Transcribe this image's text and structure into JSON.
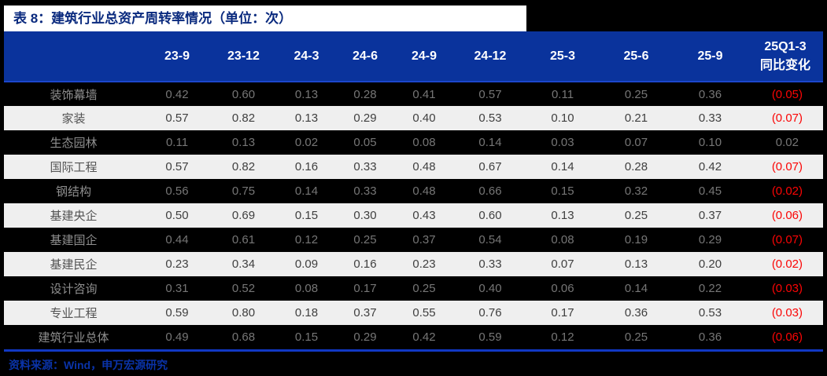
{
  "title": {
    "text": "表 8：建筑行业总资产周转率情况（单位：次）"
  },
  "chart_data": {
    "type": "table",
    "title": "表 8：建筑行业总资产周转率情况（单位：次）",
    "unit": "次",
    "columns": [
      "23-9",
      "23-12",
      "24-3",
      "24-6",
      "24-9",
      "24-12",
      "25-3",
      "25-6",
      "25-9"
    ],
    "last_column_header": {
      "line1": "25Q1-3",
      "line2": "同比变化"
    },
    "rows": [
      {
        "label": "装饰幕墙",
        "values": [
          "0.42",
          "0.60",
          "0.13",
          "0.28",
          "0.41",
          "0.57",
          "0.11",
          "0.25",
          "0.36"
        ],
        "yoy": "(0.05)"
      },
      {
        "label": "家装",
        "values": [
          "0.57",
          "0.82",
          "0.13",
          "0.29",
          "0.40",
          "0.53",
          "0.10",
          "0.21",
          "0.33"
        ],
        "yoy": "(0.07)"
      },
      {
        "label": "生态园林",
        "values": [
          "0.11",
          "0.13",
          "0.02",
          "0.05",
          "0.08",
          "0.14",
          "0.03",
          "0.07",
          "0.10"
        ],
        "yoy": "0.02"
      },
      {
        "label": "国际工程",
        "values": [
          "0.57",
          "0.82",
          "0.16",
          "0.33",
          "0.48",
          "0.67",
          "0.14",
          "0.28",
          "0.42"
        ],
        "yoy": "(0.07)"
      },
      {
        "label": "钢结构",
        "values": [
          "0.56",
          "0.75",
          "0.14",
          "0.33",
          "0.48",
          "0.66",
          "0.15",
          "0.32",
          "0.45"
        ],
        "yoy": "(0.02)"
      },
      {
        "label": "基建央企",
        "values": [
          "0.50",
          "0.69",
          "0.15",
          "0.30",
          "0.43",
          "0.60",
          "0.13",
          "0.25",
          "0.37"
        ],
        "yoy": "(0.06)"
      },
      {
        "label": "基建国企",
        "values": [
          "0.44",
          "0.61",
          "0.12",
          "0.25",
          "0.37",
          "0.54",
          "0.08",
          "0.19",
          "0.29"
        ],
        "yoy": "(0.07)"
      },
      {
        "label": "基建民企",
        "values": [
          "0.23",
          "0.34",
          "0.09",
          "0.16",
          "0.23",
          "0.33",
          "0.07",
          "0.13",
          "0.20"
        ],
        "yoy": "(0.02)"
      },
      {
        "label": "设计咨询",
        "values": [
          "0.31",
          "0.52",
          "0.08",
          "0.17",
          "0.25",
          "0.40",
          "0.06",
          "0.14",
          "0.22"
        ],
        "yoy": "(0.03)"
      },
      {
        "label": "专业工程",
        "values": [
          "0.59",
          "0.80",
          "0.18",
          "0.37",
          "0.55",
          "0.76",
          "0.17",
          "0.36",
          "0.53"
        ],
        "yoy": "(0.03)"
      },
      {
        "label": "建筑行业总体",
        "values": [
          "0.49",
          "0.68",
          "0.15",
          "0.29",
          "0.42",
          "0.59",
          "0.12",
          "0.25",
          "0.36"
        ],
        "yoy": "(0.06)"
      }
    ]
  },
  "footer": {
    "text": "资料来源：Wind，申万宏源研究"
  },
  "colors": {
    "page_bg": "#000000",
    "title_band_bg": "#ffffff",
    "title_text": "#0a2a7e",
    "header_bg": "#0a339c",
    "header_text": "#ffffff",
    "header_bottom_line": "#1c46cc",
    "dark_row_bg": "#000000",
    "light_row_bg": "#efefef",
    "dark_row_text": "#767676",
    "light_row_text": "#3f3f3f",
    "negative_red": "#fb0505",
    "rule_blue": "#1138c4",
    "footer_text": "#0a33a8"
  }
}
